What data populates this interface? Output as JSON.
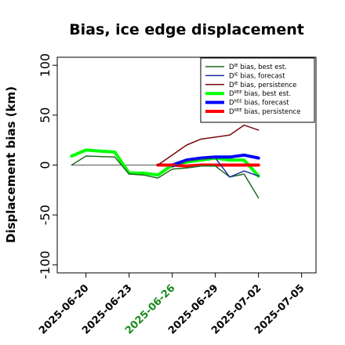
{
  "chart_data": {
    "type": "line",
    "title": "Bias, ice edge displacement",
    "xlabel": "",
    "ylabel": "Displacement bias (km)",
    "ylim": [
      -108,
      108
    ],
    "xlim": [
      "2025-06-18",
      "2025-07-06"
    ],
    "yticks": [
      "-100",
      "-50",
      "0",
      "50",
      "100"
    ],
    "xticks": [
      {
        "label": "2025-06-20",
        "color": "#000000"
      },
      {
        "label": "2025-06-23",
        "color": "#000000"
      },
      {
        "label": "2025-06-26",
        "color": "#1a8a1a"
      },
      {
        "label": "2025-06-29",
        "color": "#000000"
      },
      {
        "label": "2025-07-02",
        "color": "#000000"
      },
      {
        "label": "2025-07-05",
        "color": "#000000"
      }
    ],
    "grid": false,
    "legend_position": "top-right",
    "zero_line": {
      "from": "2025-06-19",
      "to": "2025-07-02",
      "color": "#555555"
    },
    "series": [
      {
        "name": "D^IE bias, best est.",
        "color": "#1f6b1f",
        "width": 1.5,
        "x": [
          "2025-06-19",
          "2025-06-20",
          "2025-06-22",
          "2025-06-23",
          "2025-06-24",
          "2025-06-25",
          "2025-06-26",
          "2025-06-27",
          "2025-06-28",
          "2025-06-29",
          "2025-06-30",
          "2025-07-01",
          "2025-07-02"
        ],
        "y": [
          0,
          9,
          8,
          -9,
          -10,
          -13,
          -4,
          -3,
          -1,
          -1,
          -12,
          -9,
          -33
        ]
      },
      {
        "name": "D^IE bias, forecast",
        "color": "#1f2f9f",
        "width": 1.5,
        "x": [
          "2025-06-26",
          "2025-06-27",
          "2025-06-28",
          "2025-06-29",
          "2025-06-30",
          "2025-07-01",
          "2025-07-02"
        ],
        "y": [
          -2,
          4,
          6,
          7,
          -12,
          -6,
          -11
        ]
      },
      {
        "name": "D^IE bias, persistence",
        "color": "#7a0a0a",
        "width": 1.5,
        "x": [
          "2025-06-25",
          "2025-06-26",
          "2025-06-27",
          "2025-06-28",
          "2025-06-29",
          "2025-06-30",
          "2025-07-01",
          "2025-07-02"
        ],
        "y": [
          0,
          10,
          20,
          26,
          28,
          30,
          40,
          35
        ]
      },
      {
        "name": "D^IIEE bias, best est.",
        "color": "#00ff00",
        "width": 4,
        "x": [
          "2025-06-19",
          "2025-06-20",
          "2025-06-21",
          "2025-06-22",
          "2025-06-23",
          "2025-06-24",
          "2025-06-25",
          "2025-06-26",
          "2025-06-27",
          "2025-06-28",
          "2025-06-29",
          "2025-06-30",
          "2025-07-01",
          "2025-07-02"
        ],
        "y": [
          9,
          15,
          14,
          13,
          -8,
          -8,
          -10,
          0,
          3,
          5,
          7,
          5,
          5,
          -11
        ]
      },
      {
        "name": "D^IIEE bias, forecast",
        "color": "#0000ff",
        "width": 4,
        "x": [
          "2025-06-26",
          "2025-06-27",
          "2025-06-28",
          "2025-06-29",
          "2025-06-30",
          "2025-07-01",
          "2025-07-02"
        ],
        "y": [
          0,
          5,
          7,
          8,
          8,
          10,
          7
        ]
      },
      {
        "name": "D^IIEE bias, persistence",
        "color": "#ff0000",
        "width": 4,
        "x": [
          "2025-06-25",
          "2025-06-26",
          "2025-06-27",
          "2025-06-28",
          "2025-06-29",
          "2025-06-30",
          "2025-07-01",
          "2025-07-02"
        ],
        "y": [
          0,
          0,
          -1,
          0,
          0,
          0,
          0,
          0
        ]
      }
    ],
    "legend": [
      {
        "base": "D",
        "sup": "IE",
        "rest": " bias, best est."
      },
      {
        "base": "D",
        "sup": "IE",
        "rest": " bias, forecast"
      },
      {
        "base": "D",
        "sup": "IE",
        "rest": " bias, persistence"
      },
      {
        "base": "D",
        "sup": "IIEE",
        "rest": " bias, best est."
      },
      {
        "base": "D",
        "sup": "IIEE",
        "rest": " bias, forecast"
      },
      {
        "base": "D",
        "sup": "IIEE",
        "rest": " bias, persistence"
      }
    ]
  }
}
